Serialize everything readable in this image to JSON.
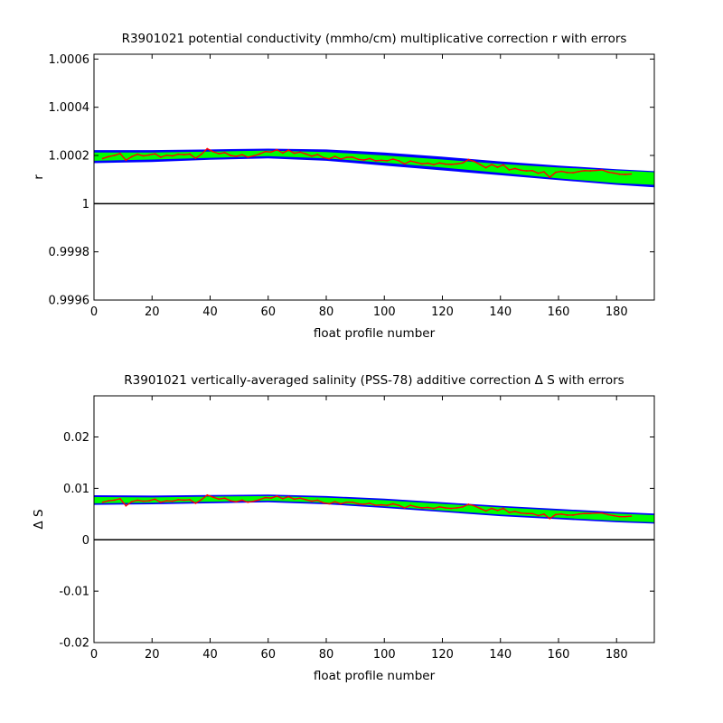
{
  "chart_data": [
    {
      "type": "line",
      "title": "R3901021 potential conductivity (mmho/cm) multiplicative correction r with errors",
      "xlabel": "float profile number",
      "ylabel": "r",
      "xlim": [
        0,
        193
      ],
      "ylim": [
        0.9996,
        1.00062
      ],
      "xticks": [
        0,
        20,
        40,
        60,
        80,
        100,
        120,
        140,
        160,
        180
      ],
      "xtick_labels": [
        "0",
        "20",
        "40",
        "60",
        "80",
        "100",
        "120",
        "140",
        "160",
        "180"
      ],
      "yticks": [
        0.9996,
        0.9998,
        1,
        1.0002,
        1.0004,
        1.0006
      ],
      "ytick_labels": [
        "0.9996",
        "0.9998",
        "1",
        "1.0002",
        "1.0004",
        "1.0006"
      ],
      "grid": false,
      "reference_line": 1,
      "series": [
        {
          "role": "error_band_outer",
          "color": "#0000ff",
          "x": [
            0,
            20,
            40,
            60,
            80,
            100,
            120,
            140,
            160,
            180,
            193
          ],
          "upper": [
            1.000222,
            1.000222,
            1.000225,
            1.000228,
            1.000225,
            1.000212,
            1.000195,
            1.000175,
            1.000158,
            1.000143,
            1.000135
          ],
          "lower": [
            1.000168,
            1.000173,
            1.000182,
            1.000188,
            1.000178,
            1.000158,
            1.000138,
            1.000118,
            1.000098,
            1.000078,
            1.000068
          ]
        },
        {
          "role": "error_band_inner",
          "color": "#00ff00",
          "x": [
            0,
            20,
            40,
            60,
            80,
            100,
            120,
            140,
            160,
            180,
            193
          ],
          "upper": [
            1.000212,
            1.000212,
            1.000216,
            1.00022,
            1.000214,
            1.0002,
            1.000183,
            1.000165,
            1.00015,
            1.000138,
            1.00013
          ],
          "lower": [
            1.000178,
            1.000183,
            1.00019,
            1.000197,
            1.000188,
            1.00017,
            1.00015,
            1.000128,
            1.000105,
            1.000085,
            1.000078
          ]
        },
        {
          "role": "correction",
          "color": "#ff0000",
          "x": [
            3,
            5,
            7,
            9,
            11,
            13,
            15,
            17,
            19,
            21,
            23,
            25,
            27,
            29,
            31,
            33,
            35,
            37,
            39,
            41,
            43,
            45,
            47,
            49,
            51,
            53,
            55,
            57,
            59,
            61,
            63,
            65,
            67,
            69,
            71,
            73,
            75,
            77,
            79,
            81,
            83,
            85,
            87,
            89,
            91,
            93,
            95,
            97,
            99,
            101,
            103,
            105,
            107,
            109,
            111,
            113,
            115,
            117,
            119,
            121,
            123,
            125,
            127,
            129,
            131,
            133,
            135,
            137,
            139,
            141,
            143,
            145,
            147,
            149,
            151,
            153,
            155,
            157,
            159,
            161,
            163,
            165,
            167,
            169,
            171,
            173,
            175,
            177,
            179,
            181,
            183,
            185
          ],
          "y": [
            1.000187,
            1.000195,
            1.0002,
            1.000208,
            1.00018,
            1.000195,
            1.000205,
            1.000198,
            1.000202,
            1.000207,
            1.000193,
            1.000201,
            1.000198,
            1.000205,
            1.000203,
            1.000206,
            1.000188,
            1.000205,
            1.000228,
            1.000216,
            1.000207,
            1.000212,
            1.0002,
            1.000196,
            1.000203,
            1.000193,
            1.000198,
            1.000206,
            1.000216,
            1.000214,
            1.000224,
            1.00021,
            1.000222,
            1.000209,
            1.000214,
            1.000206,
            1.000197,
            1.000204,
            1.000191,
            1.000186,
            1.000196,
            1.000185,
            1.000192,
            1.000193,
            1.000184,
            1.000181,
            1.000187,
            1.000178,
            1.00018,
            1.000178,
            1.000185,
            1.000178,
            1.000165,
            1.000177,
            1.000171,
            1.000165,
            1.000168,
            1.000162,
            1.000169,
            1.000164,
            1.000163,
            1.000165,
            1.000169,
            1.000183,
            1.000175,
            1.000162,
            1.000149,
            1.000162,
            1.000151,
            1.000161,
            1.00014,
            1.000146,
            1.000139,
            1.000136,
            1.000137,
            1.000126,
            1.000132,
            1.000109,
            1.00013,
            1.000134,
            1.000129,
            1.000128,
            1.000133,
            1.000137,
            1.000136,
            1.000138,
            1.00014,
            1.000131,
            1.000127,
            1.000122,
            1.000121,
            1.000123
          ]
        }
      ]
    },
    {
      "type": "line",
      "title": "R3901021 vertically-averaged salinity (PSS-78) additive correction Δ S with errors",
      "xlabel": "float profile number",
      "ylabel": "Δ S",
      "xlim": [
        0,
        193
      ],
      "ylim": [
        -0.02,
        0.028
      ],
      "xticks": [
        0,
        20,
        40,
        60,
        80,
        100,
        120,
        140,
        160,
        180
      ],
      "xtick_labels": [
        "0",
        "20",
        "40",
        "60",
        "80",
        "100",
        "120",
        "140",
        "160",
        "180"
      ],
      "yticks": [
        -0.02,
        -0.01,
        0,
        0.01,
        0.02
      ],
      "ytick_labels": [
        "-0.02",
        "-0.01",
        "0",
        "0.01",
        "0.02"
      ],
      "grid": false,
      "reference_line": 0,
      "series": [
        {
          "role": "error_band_outer",
          "color": "#0000ff",
          "x": [
            0,
            20,
            40,
            60,
            80,
            100,
            120,
            140,
            160,
            180,
            193
          ],
          "upper": [
            0.00865,
            0.0086,
            0.0087,
            0.0088,
            0.0085,
            0.008,
            0.0073,
            0.0066,
            0.006,
            0.0054,
            0.0051
          ],
          "lower": [
            0.0068,
            0.0069,
            0.0071,
            0.0073,
            0.0069,
            0.0062,
            0.0054,
            0.0046,
            0.004,
            0.0034,
            0.00315
          ]
        },
        {
          "role": "error_band_inner",
          "color": "#00ff00",
          "x": [
            0,
            20,
            40,
            60,
            80,
            100,
            120,
            140,
            160,
            180,
            193
          ],
          "upper": [
            0.0083,
            0.00825,
            0.0084,
            0.0085,
            0.0082,
            0.0077,
            0.007,
            0.0063,
            0.0057,
            0.0051,
            0.0048
          ],
          "lower": [
            0.0071,
            0.0072,
            0.0074,
            0.0076,
            0.0072,
            0.0065,
            0.0057,
            0.0049,
            0.0043,
            0.0037,
            0.0034
          ]
        },
        {
          "role": "correction",
          "color": "#ff0000",
          "x": [
            3,
            5,
            7,
            9,
            11,
            13,
            15,
            17,
            19,
            21,
            23,
            25,
            27,
            29,
            31,
            33,
            35,
            37,
            39,
            41,
            43,
            45,
            47,
            49,
            51,
            53,
            55,
            57,
            59,
            61,
            63,
            65,
            67,
            69,
            71,
            73,
            75,
            77,
            79,
            81,
            83,
            85,
            87,
            89,
            91,
            93,
            95,
            97,
            99,
            101,
            103,
            105,
            107,
            109,
            111,
            113,
            115,
            117,
            119,
            121,
            123,
            125,
            127,
            129,
            131,
            133,
            135,
            137,
            139,
            141,
            143,
            145,
            147,
            149,
            151,
            153,
            155,
            157,
            159,
            161,
            163,
            165,
            167,
            169,
            171,
            173,
            175,
            177,
            179,
            181,
            183,
            185
          ],
          "y": [
            0.0073,
            0.0076,
            0.0077,
            0.008,
            0.0066,
            0.0074,
            0.0077,
            0.0075,
            0.0076,
            0.0079,
            0.0073,
            0.0076,
            0.0075,
            0.0078,
            0.0077,
            0.0078,
            0.0071,
            0.0078,
            0.0087,
            0.0083,
            0.0079,
            0.0081,
            0.0076,
            0.0074,
            0.0077,
            0.0073,
            0.0075,
            0.0078,
            0.0082,
            0.0081,
            0.0085,
            0.008,
            0.0084,
            0.0079,
            0.0081,
            0.0078,
            0.0075,
            0.0077,
            0.0072,
            0.007,
            0.0074,
            0.007,
            0.0073,
            0.0073,
            0.007,
            0.0069,
            0.0071,
            0.0067,
            0.0068,
            0.0067,
            0.007,
            0.0067,
            0.0062,
            0.0067,
            0.0064,
            0.0062,
            0.0063,
            0.0061,
            0.0064,
            0.0062,
            0.0061,
            0.0062,
            0.0064,
            0.0069,
            0.0066,
            0.0061,
            0.0056,
            0.0061,
            0.0057,
            0.0061,
            0.0053,
            0.0055,
            0.0052,
            0.0051,
            0.0051,
            0.0047,
            0.005,
            0.0041,
            0.0049,
            0.005,
            0.0048,
            0.0048,
            0.005,
            0.0051,
            0.0051,
            0.0052,
            0.0052,
            0.0049,
            0.0047,
            0.0045,
            0.0045,
            0.0046
          ]
        }
      ]
    }
  ]
}
